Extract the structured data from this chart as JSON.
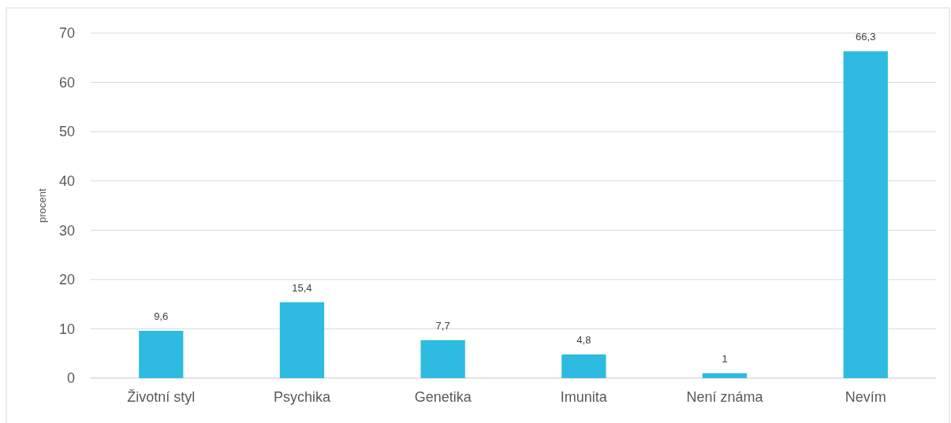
{
  "chart_data": {
    "type": "bar",
    "ylabel": "procent",
    "categories": [
      "Životní styl",
      "Psychika",
      "Genetika",
      "Imunita",
      "Není známa",
      "Nevím"
    ],
    "values": [
      9.6,
      15.4,
      7.7,
      4.8,
      1,
      66.3
    ],
    "value_labels": [
      "9,6",
      "15,4",
      "7,7",
      "4,8",
      "1",
      "66,3"
    ],
    "color": "#2dbbe1",
    "ylim": [
      0,
      70
    ],
    "yticks": [
      0,
      10,
      20,
      30,
      40,
      50,
      60,
      70
    ],
    "grid": "y"
  }
}
